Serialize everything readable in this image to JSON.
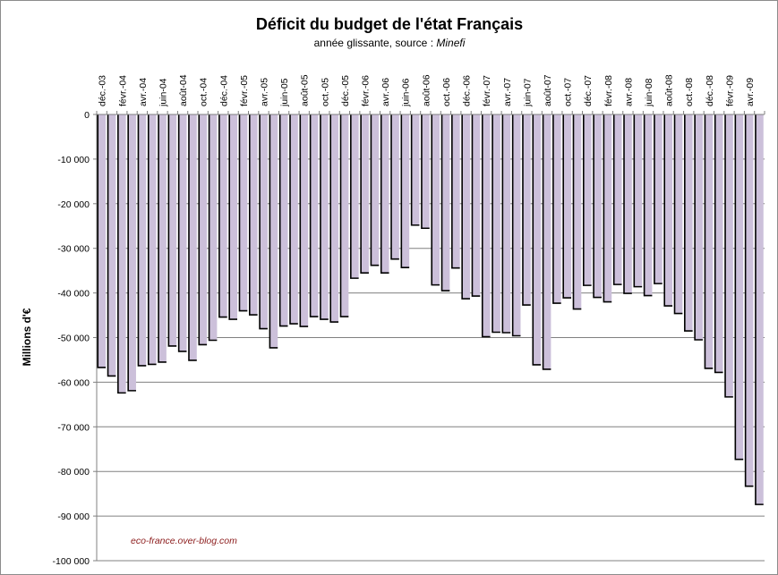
{
  "chart_data": {
    "type": "bar",
    "title": "Déficit du budget de l'état Français",
    "subtitle": "année glissante, source : ",
    "subtitle_source": "Minefi",
    "xlabel": "",
    "ylabel": "Millions d'€",
    "ylim": [
      -100000,
      0
    ],
    "yticks": [
      0,
      -10000,
      -20000,
      -30000,
      -40000,
      -50000,
      -60000,
      -70000,
      -80000,
      -90000,
      -100000
    ],
    "ytick_labels": [
      "0",
      "-10 000",
      "-20 000",
      "-30 000",
      "-40 000",
      "-50 000",
      "-60 000",
      "-70 000",
      "-80 000",
      "-90 000",
      "-100 000"
    ],
    "grid": true,
    "legend": "none",
    "colors": {
      "bar_fill": "#ccc0da",
      "bar_stroke": "#000000",
      "grid": "#808080",
      "watermark": "#8b1a1a"
    },
    "categories": [
      "déc.-03",
      "janv.-04",
      "févr.-04",
      "mars-04",
      "avr.-04",
      "mai-04",
      "juin-04",
      "juil.-04",
      "août-04",
      "sept.-04",
      "oct.-04",
      "nov.-04",
      "déc.-04",
      "janv.-05",
      "févr.-05",
      "mars-05",
      "avr.-05",
      "mai-05",
      "juin-05",
      "juil.-05",
      "août-05",
      "sept.-05",
      "oct.-05",
      "nov.-05",
      "déc.-05",
      "janv.-06",
      "févr.-06",
      "mars-06",
      "avr.-06",
      "mai-06",
      "juin-06",
      "juil.-06",
      "août-06",
      "sept.-06",
      "oct.-06",
      "nov.-06",
      "déc.-06",
      "janv.-07",
      "févr.-07",
      "mars-07",
      "avr.-07",
      "mai-07",
      "juin-07",
      "juil.-07",
      "août-07",
      "sept.-07",
      "oct.-07",
      "nov.-07",
      "déc.-07",
      "janv.-08",
      "févr.-08",
      "mars-08",
      "avr.-08",
      "mai-08",
      "juin-08",
      "juil.-08",
      "août-08",
      "sept.-08",
      "oct.-08",
      "nov.-08",
      "déc.-08",
      "janv.-09",
      "févr.-09",
      "mars-09",
      "avr.-09",
      "mai-09"
    ],
    "tick_labels": [
      "déc.-03",
      "",
      "févr.-04",
      "",
      "avr.-04",
      "",
      "juin-04",
      "",
      "août-04",
      "",
      "oct.-04",
      "",
      "déc.-04",
      "",
      "févr.-05",
      "",
      "avr.-05",
      "",
      "juin-05",
      "",
      "août-05",
      "",
      "oct.-05",
      "",
      "déc.-05",
      "",
      "févr.-06",
      "",
      "avr.-06",
      "",
      "juin-06",
      "",
      "août-06",
      "",
      "oct.-06",
      "",
      "déc.-06",
      "",
      "févr.-07",
      "",
      "avr.-07",
      "",
      "juin-07",
      "",
      "août-07",
      "",
      "oct.-07",
      "",
      "déc.-07",
      "",
      "févr.-08",
      "",
      "avr.-08",
      "",
      "juin-08",
      "",
      "août-08",
      "",
      "oct.-08",
      "",
      "déc.-08",
      "",
      "févr.-09",
      "",
      "avr.-09",
      ""
    ],
    "values": [
      -56700,
      -58600,
      -62400,
      -61900,
      -56300,
      -56000,
      -55500,
      -51900,
      -53100,
      -55100,
      -51600,
      -50600,
      -45400,
      -45900,
      -44000,
      -44900,
      -48000,
      -52300,
      -47400,
      -46900,
      -47500,
      -45300,
      -45900,
      -46500,
      -45300,
      -36700,
      -35500,
      -33800,
      -35500,
      -32400,
      -34300,
      -24800,
      -25500,
      -38200,
      -39500,
      -34400,
      -41300,
      -40700,
      -49800,
      -48800,
      -48900,
      -49600,
      -42700,
      -56100,
      -57100,
      -42300,
      -41100,
      -43600,
      -38300,
      -41000,
      -42000,
      -38100,
      -40100,
      -38600,
      -40600,
      -37900,
      -42900,
      -44600,
      -48500,
      -50500,
      -56900,
      -57800,
      -63300,
      -77300,
      -83300,
      -87400
    ]
  },
  "watermark": "eco-france.over-blog.com"
}
